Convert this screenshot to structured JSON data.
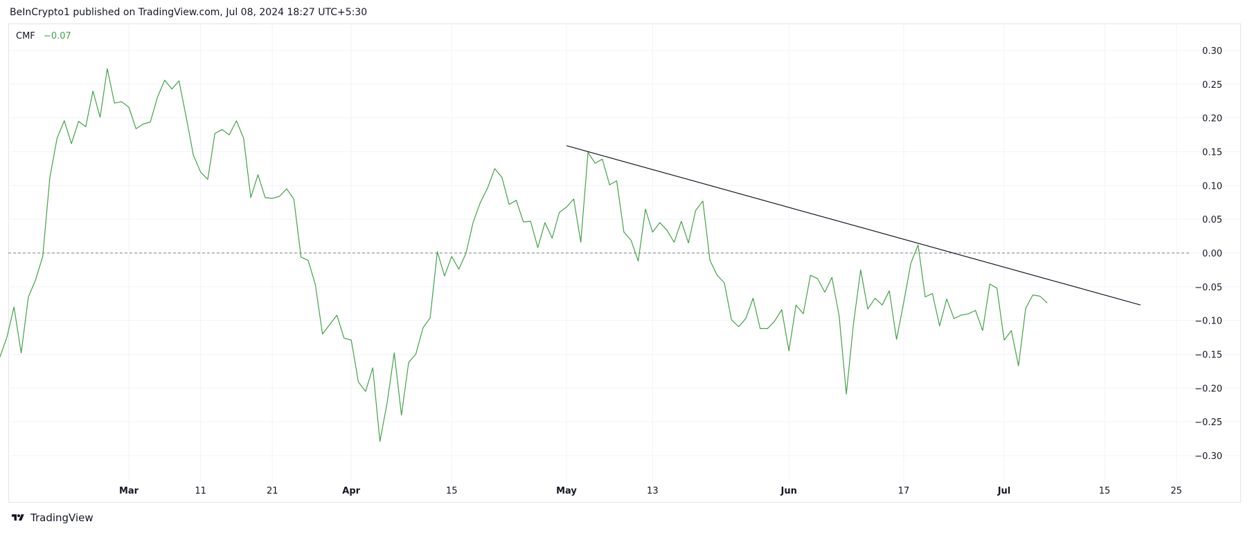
{
  "header": {
    "published_text": "BeInCrypto1 published on TradingView.com, Jul 08, 2024 18:27 UTC+5:30"
  },
  "legend": {
    "indicator": "CMF",
    "value": "−0.07"
  },
  "footer": {
    "brand": "TradingView",
    "logo_icon": "tradingview-logo-icon"
  },
  "colors": {
    "series": "#43a047",
    "trendline": "#131722",
    "grid": "#f0f3fa",
    "zero_line": "#787b86"
  },
  "chart_data": {
    "type": "line",
    "title": "",
    "xlabel": "",
    "ylabel": "",
    "ylim": [
      -0.35,
      0.35
    ],
    "yticks": [
      "0.30",
      "0.25",
      "0.20",
      "0.15",
      "0.10",
      "0.05",
      "0.00",
      "−0.05",
      "−0.10",
      "−0.15",
      "−0.20",
      "−0.25",
      "−0.30"
    ],
    "ytick_values": [
      0.3,
      0.25,
      0.2,
      0.15,
      0.1,
      0.05,
      0.0,
      -0.05,
      -0.1,
      -0.15,
      -0.2,
      -0.25,
      -0.3
    ],
    "xlim": [
      "2024-02-12",
      "2024-07-30"
    ],
    "xticks": [
      {
        "date": "2024-03-01",
        "label": "Mar",
        "bold": true
      },
      {
        "date": "2024-03-11",
        "label": "11",
        "bold": false
      },
      {
        "date": "2024-03-21",
        "label": "21",
        "bold": false
      },
      {
        "date": "2024-04-01",
        "label": "Apr",
        "bold": true
      },
      {
        "date": "2024-04-15",
        "label": "15",
        "bold": false
      },
      {
        "date": "2024-05-01",
        "label": "May",
        "bold": true
      },
      {
        "date": "2024-05-13",
        "label": "13",
        "bold": false
      },
      {
        "date": "2024-06-01",
        "label": "Jun",
        "bold": true
      },
      {
        "date": "2024-06-17",
        "label": "17",
        "bold": false
      },
      {
        "date": "2024-07-01",
        "label": "Jul",
        "bold": true
      },
      {
        "date": "2024-07-15",
        "label": "15",
        "bold": false
      },
      {
        "date": "2024-07-25",
        "label": "25",
        "bold": false
      }
    ],
    "horizontal_line": {
      "y": 0.0,
      "style": "dashed"
    },
    "grid": true,
    "series": [
      {
        "color": "#43a047",
        "points": [
          [
            "2024-02-12",
            -0.155
          ],
          [
            "2024-02-13",
            -0.125
          ],
          [
            "2024-02-14",
            -0.08
          ],
          [
            "2024-02-15",
            -0.148
          ],
          [
            "2024-02-16",
            -0.065
          ],
          [
            "2024-02-17",
            -0.04
          ],
          [
            "2024-02-18",
            -0.005
          ],
          [
            "2024-02-19",
            0.112
          ],
          [
            "2024-02-20",
            0.17
          ],
          [
            "2024-02-21",
            0.196
          ],
          [
            "2024-02-22",
            0.162
          ],
          [
            "2024-02-23",
            0.195
          ],
          [
            "2024-02-24",
            0.187
          ],
          [
            "2024-02-25",
            0.24
          ],
          [
            "2024-02-26",
            0.201
          ],
          [
            "2024-02-27",
            0.273
          ],
          [
            "2024-02-28",
            0.222
          ],
          [
            "2024-02-29",
            0.224
          ],
          [
            "2024-03-01",
            0.216
          ],
          [
            "2024-03-02",
            0.184
          ],
          [
            "2024-03-03",
            0.191
          ],
          [
            "2024-03-04",
            0.194
          ],
          [
            "2024-03-05",
            0.231
          ],
          [
            "2024-03-06",
            0.256
          ],
          [
            "2024-03-07",
            0.243
          ],
          [
            "2024-03-08",
            0.255
          ],
          [
            "2024-03-09",
            0.201
          ],
          [
            "2024-03-10",
            0.145
          ],
          [
            "2024-03-11",
            0.12
          ],
          [
            "2024-03-12",
            0.109
          ],
          [
            "2024-03-13",
            0.177
          ],
          [
            "2024-03-14",
            0.183
          ],
          [
            "2024-03-15",
            0.175
          ],
          [
            "2024-03-16",
            0.196
          ],
          [
            "2024-03-17",
            0.17
          ],
          [
            "2024-03-18",
            0.082
          ],
          [
            "2024-03-19",
            0.116
          ],
          [
            "2024-03-20",
            0.082
          ],
          [
            "2024-03-21",
            0.081
          ],
          [
            "2024-03-22",
            0.084
          ],
          [
            "2024-03-23",
            0.095
          ],
          [
            "2024-03-24",
            0.08
          ],
          [
            "2024-03-25",
            -0.006
          ],
          [
            "2024-03-26",
            -0.011
          ],
          [
            "2024-03-27",
            -0.047
          ],
          [
            "2024-03-28",
            -0.12
          ],
          [
            "2024-03-29",
            -0.106
          ],
          [
            "2024-03-30",
            -0.092
          ],
          [
            "2024-03-31",
            -0.126
          ],
          [
            "2024-04-01",
            -0.129
          ],
          [
            "2024-04-02",
            -0.191
          ],
          [
            "2024-04-03",
            -0.205
          ],
          [
            "2024-04-04",
            -0.17
          ],
          [
            "2024-04-05",
            -0.279
          ],
          [
            "2024-04-06",
            -0.222
          ],
          [
            "2024-04-07",
            -0.148
          ],
          [
            "2024-04-08",
            -0.24
          ],
          [
            "2024-04-09",
            -0.162
          ],
          [
            "2024-04-10",
            -0.15
          ],
          [
            "2024-04-11",
            -0.111
          ],
          [
            "2024-04-12",
            -0.096
          ],
          [
            "2024-04-13",
            0.002
          ],
          [
            "2024-04-14",
            -0.034
          ],
          [
            "2024-04-15",
            -0.005
          ],
          [
            "2024-04-16",
            -0.024
          ],
          [
            "2024-04-17",
            0.0
          ],
          [
            "2024-04-18",
            0.046
          ],
          [
            "2024-04-19",
            0.075
          ],
          [
            "2024-04-20",
            0.096
          ],
          [
            "2024-04-21",
            0.125
          ],
          [
            "2024-04-22",
            0.112
          ],
          [
            "2024-04-23",
            0.072
          ],
          [
            "2024-04-24",
            0.078
          ],
          [
            "2024-04-25",
            0.046
          ],
          [
            "2024-04-26",
            0.047
          ],
          [
            "2024-04-27",
            0.008
          ],
          [
            "2024-04-28",
            0.045
          ],
          [
            "2024-04-29",
            0.022
          ],
          [
            "2024-04-30",
            0.06
          ],
          [
            "2024-05-01",
            0.068
          ],
          [
            "2024-05-02",
            0.08
          ],
          [
            "2024-05-03",
            0.016
          ],
          [
            "2024-05-04",
            0.149
          ],
          [
            "2024-05-05",
            0.133
          ],
          [
            "2024-05-06",
            0.139
          ],
          [
            "2024-05-07",
            0.101
          ],
          [
            "2024-05-08",
            0.107
          ],
          [
            "2024-05-09",
            0.031
          ],
          [
            "2024-05-10",
            0.019
          ],
          [
            "2024-05-11",
            -0.012
          ],
          [
            "2024-05-12",
            0.065
          ],
          [
            "2024-05-13",
            0.031
          ],
          [
            "2024-05-14",
            0.045
          ],
          [
            "2024-05-15",
            0.034
          ],
          [
            "2024-05-16",
            0.016
          ],
          [
            "2024-05-17",
            0.047
          ],
          [
            "2024-05-18",
            0.015
          ],
          [
            "2024-05-19",
            0.063
          ],
          [
            "2024-05-20",
            0.077
          ],
          [
            "2024-05-21",
            -0.011
          ],
          [
            "2024-05-22",
            -0.033
          ],
          [
            "2024-05-23",
            -0.044
          ],
          [
            "2024-05-24",
            -0.099
          ],
          [
            "2024-05-25",
            -0.109
          ],
          [
            "2024-05-26",
            -0.097
          ],
          [
            "2024-05-27",
            -0.067
          ],
          [
            "2024-05-28",
            -0.112
          ],
          [
            "2024-05-29",
            -0.112
          ],
          [
            "2024-05-30",
            -0.101
          ],
          [
            "2024-05-31",
            -0.084
          ],
          [
            "2024-06-01",
            -0.145
          ],
          [
            "2024-06-02",
            -0.077
          ],
          [
            "2024-06-03",
            -0.09
          ],
          [
            "2024-06-04",
            -0.033
          ],
          [
            "2024-06-05",
            -0.038
          ],
          [
            "2024-06-06",
            -0.058
          ],
          [
            "2024-06-07",
            -0.036
          ],
          [
            "2024-06-08",
            -0.093
          ],
          [
            "2024-06-09",
            -0.209
          ],
          [
            "2024-06-10",
            -0.105
          ],
          [
            "2024-06-11",
            -0.025
          ],
          [
            "2024-06-12",
            -0.083
          ],
          [
            "2024-06-13",
            -0.067
          ],
          [
            "2024-06-14",
            -0.077
          ],
          [
            "2024-06-15",
            -0.056
          ],
          [
            "2024-06-16",
            -0.128
          ],
          [
            "2024-06-17",
            -0.073
          ],
          [
            "2024-06-18",
            -0.015
          ],
          [
            "2024-06-19",
            0.012
          ],
          [
            "2024-06-20",
            -0.065
          ],
          [
            "2024-06-21",
            -0.06
          ],
          [
            "2024-06-22",
            -0.108
          ],
          [
            "2024-06-23",
            -0.068
          ],
          [
            "2024-06-24",
            -0.097
          ],
          [
            "2024-06-25",
            -0.092
          ],
          [
            "2024-06-26",
            -0.09
          ],
          [
            "2024-06-27",
            -0.085
          ],
          [
            "2024-06-28",
            -0.115
          ],
          [
            "2024-06-29",
            -0.046
          ],
          [
            "2024-06-30",
            -0.052
          ],
          [
            "2024-07-01",
            -0.129
          ],
          [
            "2024-07-02",
            -0.115
          ],
          [
            "2024-07-03",
            -0.167
          ],
          [
            "2024-07-04",
            -0.082
          ],
          [
            "2024-07-05",
            -0.062
          ],
          [
            "2024-07-06",
            -0.064
          ],
          [
            "2024-07-07",
            -0.074
          ]
        ]
      }
    ],
    "trendline": {
      "start": [
        "2024-05-01",
        0.159
      ],
      "end": [
        "2024-07-20",
        -0.077
      ]
    }
  }
}
